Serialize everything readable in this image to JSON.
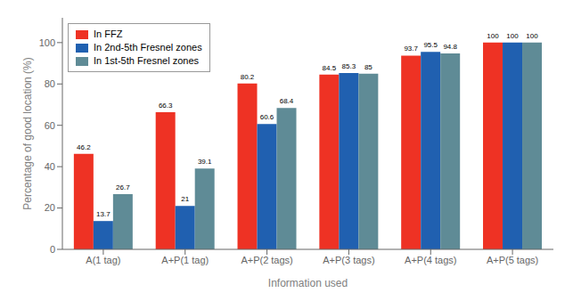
{
  "chart_data": {
    "type": "bar",
    "categories": [
      "A(1 tag)",
      "A+P(1 tag)",
      "A+P(2 tags)",
      "A+P(3 tags)",
      "A+P(4 tags)",
      "A+P(5 tags)"
    ],
    "series": [
      {
        "name": "In FFZ",
        "color": "#EE3224",
        "values": [
          46.2,
          66.3,
          80.2,
          84.5,
          93.7,
          100
        ]
      },
      {
        "name": "In 2nd-5th Fresnel zones",
        "color": "#2060B0",
        "values": [
          13.7,
          21,
          60.6,
          85.3,
          95.5,
          100
        ]
      },
      {
        "name": "In 1st-5th Fresnel zones",
        "color": "#5F8B96",
        "values": [
          26.7,
          39.1,
          68.4,
          85,
          94.8,
          100
        ]
      }
    ],
    "xlabel": "Information used",
    "ylabel": "Percentage of good location (%)",
    "ylim": [
      0,
      112
    ],
    "yticks": [
      0,
      20,
      40,
      60,
      80,
      100
    ],
    "grid": false,
    "legend": "upper left",
    "data_labels": true
  }
}
